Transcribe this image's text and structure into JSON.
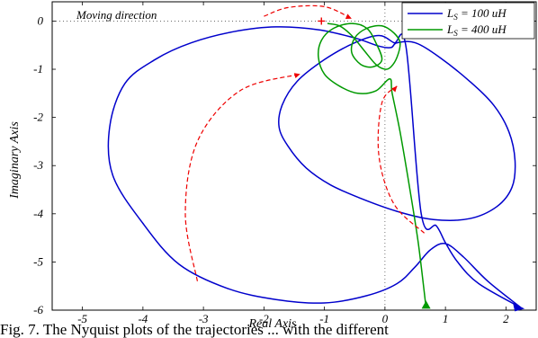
{
  "chart_data": {
    "type": "line",
    "xlabel": "Real Axis",
    "ylabel": "Imaginary Axis",
    "xlim": [
      -5.5,
      2.5
    ],
    "ylim": [
      -6,
      0.4
    ],
    "xticks": [
      "-5",
      "-4",
      "-3",
      "-2",
      "-1",
      "0",
      "1",
      "2"
    ],
    "yticks": [
      "0",
      "-1",
      "-2",
      "-3",
      "-4",
      "-5",
      "-6"
    ],
    "grid": "dotted zero lines",
    "legend_position": "top-right",
    "annotation": "Moving direction",
    "caption_fragment": "Fig. 7. The Nyquist plots of the trajectories ... with the different",
    "series": [
      {
        "name": "Ls = 100 uH",
        "legend_main": "L",
        "legend_sub": "S",
        "legend_rest": " = 100 uH",
        "color": "#0000cc",
        "x": [
          2.25,
          1.7,
          1.3,
          1.0,
          0.75,
          0.5,
          0.2,
          -0.3,
          -1.0,
          -1.8,
          -2.6,
          -3.4,
          -4.0,
          -4.5,
          -4.55,
          -4.3,
          -3.8,
          -3.2,
          -2.5,
          -1.8,
          -1.1,
          -0.5,
          -0.1,
          0.1,
          0.2,
          0.5,
          0.9,
          1.4,
          1.8,
          2.05,
          2.15,
          2.1,
          1.85,
          1.4,
          0.8,
          0.2,
          -0.4,
          -0.9,
          -1.3,
          -1.6,
          -1.75,
          -1.7,
          -1.45,
          -1.0,
          -0.5,
          -0.1,
          0.15,
          0.35,
          0.6,
          0.85,
          1.0,
          1.2,
          1.55,
          2.25
        ],
        "y": [
          -5.95,
          -5.4,
          -4.9,
          -4.62,
          -4.75,
          -5.1,
          -5.45,
          -5.7,
          -5.85,
          -5.78,
          -5.55,
          -5.05,
          -4.2,
          -3.2,
          -2.2,
          -1.3,
          -0.8,
          -0.45,
          -0.22,
          -0.12,
          -0.18,
          -0.35,
          -0.52,
          -0.55,
          -0.45,
          -0.45,
          -0.75,
          -1.25,
          -1.75,
          -2.3,
          -2.9,
          -3.45,
          -3.85,
          -4.1,
          -4.12,
          -3.95,
          -3.68,
          -3.4,
          -3.05,
          -2.6,
          -2.2,
          -1.75,
          -1.25,
          -0.8,
          -0.45,
          -0.3,
          -0.45,
          -0.55,
          -4.0,
          -4.25,
          -4.6,
          -5.0,
          -5.45,
          -5.95
        ]
      },
      {
        "name": "Ls = 400 uH",
        "legend_main": "L",
        "legend_sub": "S",
        "legend_rest": " = 400 uH",
        "color": "#009900",
        "x": [
          0.68,
          0.55,
          0.4,
          0.25,
          0.12,
          0.08,
          -0.15,
          -0.45,
          -0.75,
          -1.0,
          -1.1,
          -1.05,
          -0.85,
          -0.55,
          -0.3,
          -0.15,
          -0.05,
          -0.2,
          -0.4,
          -0.55,
          -0.5,
          -0.3,
          -0.05,
          0.15,
          0.25,
          0.2,
          0.1,
          0.0,
          -0.15,
          -0.35,
          -0.55,
          -0.75,
          -0.95
        ],
        "y": [
          -5.95,
          -4.6,
          -3.4,
          -2.3,
          -1.5,
          -1.2,
          -1.45,
          -1.5,
          -1.35,
          -1.1,
          -0.75,
          -0.4,
          -0.15,
          -0.05,
          -0.15,
          -0.45,
          -0.8,
          -0.95,
          -0.9,
          -0.65,
          -0.35,
          -0.15,
          -0.1,
          -0.25,
          -0.45,
          -0.75,
          -0.95,
          -1.0,
          -0.9,
          -0.6,
          -0.3,
          -0.1,
          -0.05
        ]
      }
    ],
    "direction_arrows": [
      {
        "x": [
          -3.1,
          -3.3,
          -3.1,
          -2.4,
          -1.4
        ],
        "y": [
          -5.4,
          -4.0,
          -2.5,
          -1.45,
          -1.1
        ]
      },
      {
        "x": [
          -2.0,
          -1.6,
          -1.0,
          -0.55
        ],
        "y": [
          0.1,
          0.28,
          0.3,
          0.05
        ]
      },
      {
        "x": [
          0.65,
          0.15,
          -0.1,
          -0.05,
          0.2
        ],
        "y": [
          -4.4,
          -3.8,
          -2.8,
          -1.7,
          -1.35
        ]
      }
    ],
    "plus_marker": {
      "x": -1.05,
      "y": 0.0
    }
  }
}
